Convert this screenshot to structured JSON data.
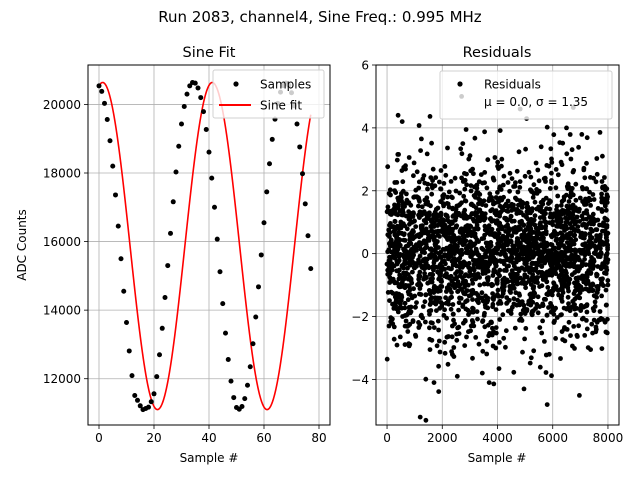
{
  "figure": {
    "suptitle": "Run 2083, channel4, Sine Freq.: 0.995 MHz"
  },
  "chart_data": [
    {
      "type": "scatter",
      "title": "Sine Fit",
      "xlabel": "Sample #",
      "ylabel": "ADC Counts",
      "xlim": [
        -4,
        84
      ],
      "ylim": [
        10650,
        21150
      ],
      "xticks": [
        0,
        20,
        40,
        60,
        80
      ],
      "yticks": [
        12000,
        14000,
        16000,
        18000,
        20000
      ],
      "grid": true,
      "legend_position": "upper right",
      "legend": [
        "Samples",
        "Sine fit"
      ],
      "series": [
        {
          "name": "Samples",
          "style": "black dots",
          "x": [
            0,
            1,
            2,
            3,
            4,
            5,
            6,
            7,
            8,
            9,
            10,
            11,
            12,
            13,
            14,
            15,
            16,
            17,
            18,
            19,
            20,
            21,
            22,
            23,
            24,
            25,
            26,
            27,
            28,
            29,
            30,
            31,
            32,
            33,
            34,
            35,
            36,
            37,
            38,
            39,
            40,
            41,
            42,
            43,
            44,
            45,
            46,
            47,
            48,
            49,
            50,
            51,
            52,
            53,
            54,
            55,
            56,
            57,
            58,
            59,
            60,
            61,
            62,
            63,
            64,
            65,
            66,
            67,
            68,
            69,
            70,
            71,
            72,
            73,
            74,
            75,
            76,
            77
          ],
          "y": [
            20540,
            20380,
            20030,
            19560,
            18940,
            18200,
            17360,
            16450,
            15500,
            14550,
            13640,
            12810,
            12090,
            11510,
            11370,
            11210,
            11100,
            11130,
            11170,
            11330,
            11560,
            12060,
            12700,
            13470,
            14370,
            15300,
            16240,
            17160,
            18030,
            18780,
            19430,
            19940,
            20300,
            20540,
            20640,
            20620,
            20480,
            20200,
            19790,
            19270,
            18610,
            17850,
            17000,
            16070,
            15120,
            14190,
            13330,
            12560,
            11930,
            11450,
            11160,
            11110,
            11190,
            11420,
            11810,
            12350,
            13020,
            13800,
            14680,
            15610,
            16550,
            17450,
            18270,
            18980,
            19570,
            20030,
            20360,
            20550,
            20620,
            20560,
            20340,
            19960,
            19430,
            18760,
            17980,
            17100,
            16170,
            15210
          ]
        },
        {
          "name": "Sine fit",
          "style": "red line",
          "color": "#ff0000",
          "amplitude": 4770,
          "offset": 15870,
          "period": 39.86,
          "phase_deg": 78
        }
      ]
    },
    {
      "type": "scatter",
      "title": "Residuals",
      "xlabel": "Sample #",
      "ylabel": "",
      "xlim": [
        -400,
        8400
      ],
      "ylim": [
        -5.45,
        6
      ],
      "xticks": [
        0,
        2000,
        4000,
        6000,
        8000
      ],
      "yticks": [
        -4,
        -2,
        0,
        2,
        4,
        6
      ],
      "grid": true,
      "legend_position": "upper right",
      "legend": [
        "Residuals",
        "μ = 0.0, σ = 1.35"
      ],
      "mu": 0.0,
      "sigma": 1.35,
      "n_points": 8000,
      "outliers": [
        {
          "x": 1200,
          "y": -5.2
        },
        {
          "x": 5800,
          "y": -4.8
        },
        {
          "x": 2700,
          "y": 5.0
        },
        {
          "x": 6500,
          "y": 4.0
        },
        {
          "x": 400,
          "y": 4.4
        },
        {
          "x": 1700,
          "y": -4.1
        },
        {
          "x": 3700,
          "y": -4.1
        },
        {
          "x": 7800,
          "y": 3.1
        }
      ]
    }
  ]
}
